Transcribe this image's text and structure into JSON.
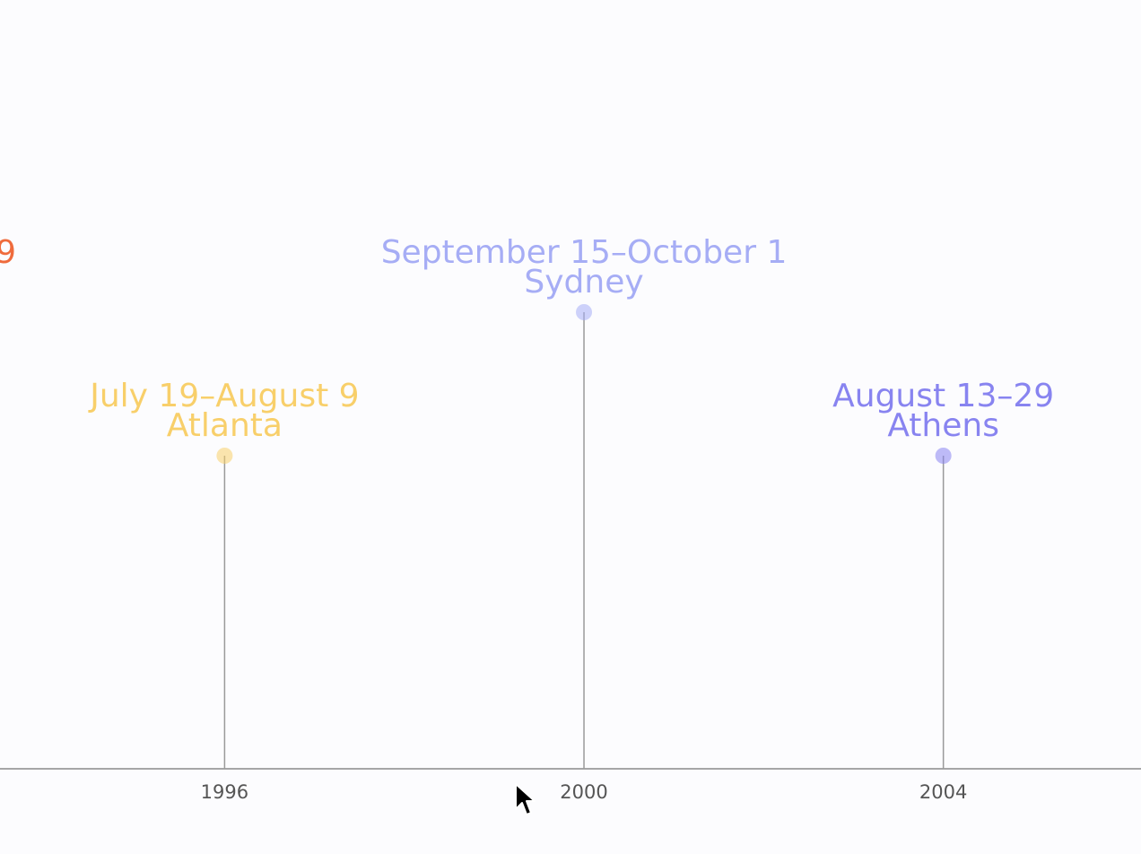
{
  "chart_data": {
    "type": "timeline",
    "x_axis": {
      "range": [
        1993.5,
        2006.2
      ],
      "ticks": [
        "1996",
        "2000",
        "2004"
      ]
    },
    "grid": false,
    "events": [
      {
        "year": 1992,
        "dates": "…9",
        "city": "",
        "color": "#ef6b3c",
        "level": 2,
        "partially_visible": true
      },
      {
        "year": 1996,
        "dates": "July 19–August 9",
        "city": "Atlanta",
        "color": "#f8cf6a",
        "level": 1
      },
      {
        "year": 2000,
        "dates": "September 15–October 1",
        "city": "Sydney",
        "color": "#a6adf5",
        "level": 2
      },
      {
        "year": 2004,
        "dates": "August 13–29",
        "city": "Athens",
        "color": "#8884f0",
        "level": 1
      }
    ]
  }
}
